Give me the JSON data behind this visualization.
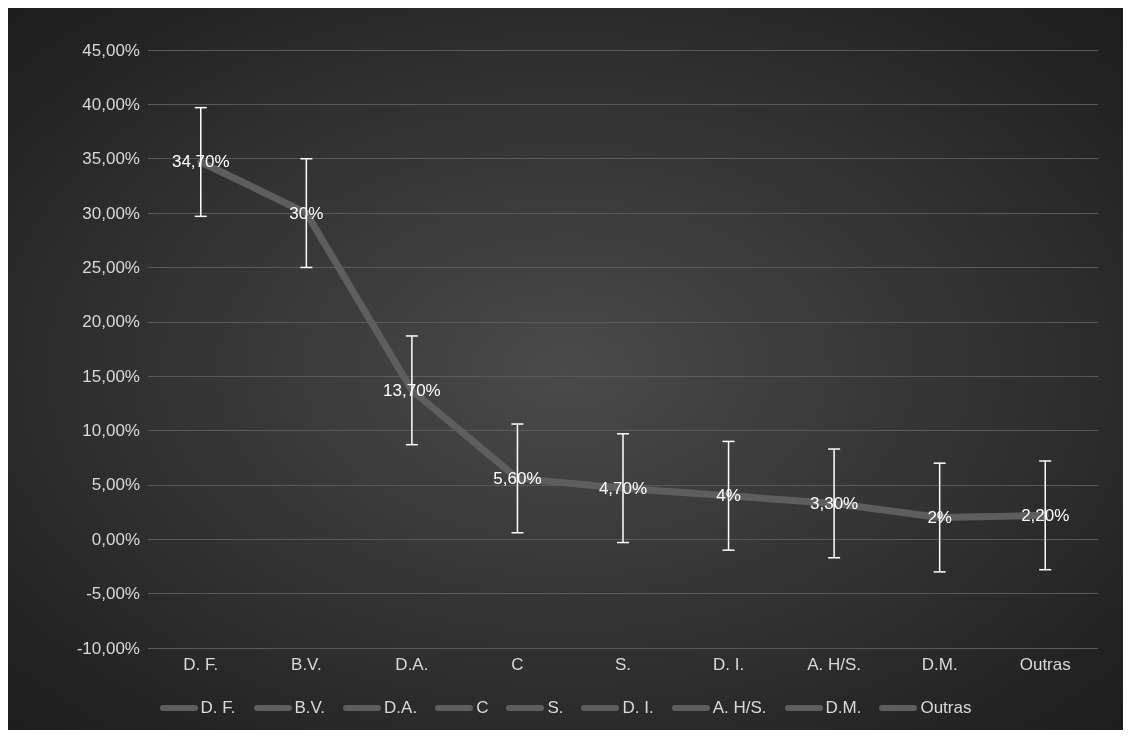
{
  "chart_data": {
    "type": "line",
    "categories": [
      "D. F.",
      "B.V.",
      "D.A.",
      "C",
      "S.",
      "D. I.",
      "A. H/S.",
      "D.M.",
      "Outras"
    ],
    "series": [
      {
        "color": "#5e5e5e",
        "values": [
          34.7,
          30,
          13.7,
          5.6,
          4.7,
          4,
          3.3,
          2,
          2.2
        ],
        "errors": [
          5,
          5,
          5,
          5,
          5,
          5,
          5,
          5,
          5
        ],
        "value_labels": [
          "34,70%",
          "30%",
          "13,70%",
          "5,60%",
          "4,70%",
          "4%",
          "3,30%",
          "2%",
          "2,20%"
        ]
      }
    ],
    "ylim": [
      -10,
      45
    ],
    "yticks": [
      {
        "value": -10,
        "label": "-10,00%"
      },
      {
        "value": -5,
        "label": "-5,00%"
      },
      {
        "value": 0,
        "label": "0,00%"
      },
      {
        "value": 5,
        "label": "5,00%"
      },
      {
        "value": 10,
        "label": "10,00%"
      },
      {
        "value": 15,
        "label": "15,00%"
      },
      {
        "value": 20,
        "label": "20,00%"
      },
      {
        "value": 25,
        "label": "25,00%"
      },
      {
        "value": 30,
        "label": "30,00%"
      },
      {
        "value": 35,
        "label": "35,00%"
      },
      {
        "value": 40,
        "label": "40,00%"
      },
      {
        "value": 45,
        "label": "45,00%"
      }
    ],
    "grid": "y",
    "line_style": "solid"
  }
}
